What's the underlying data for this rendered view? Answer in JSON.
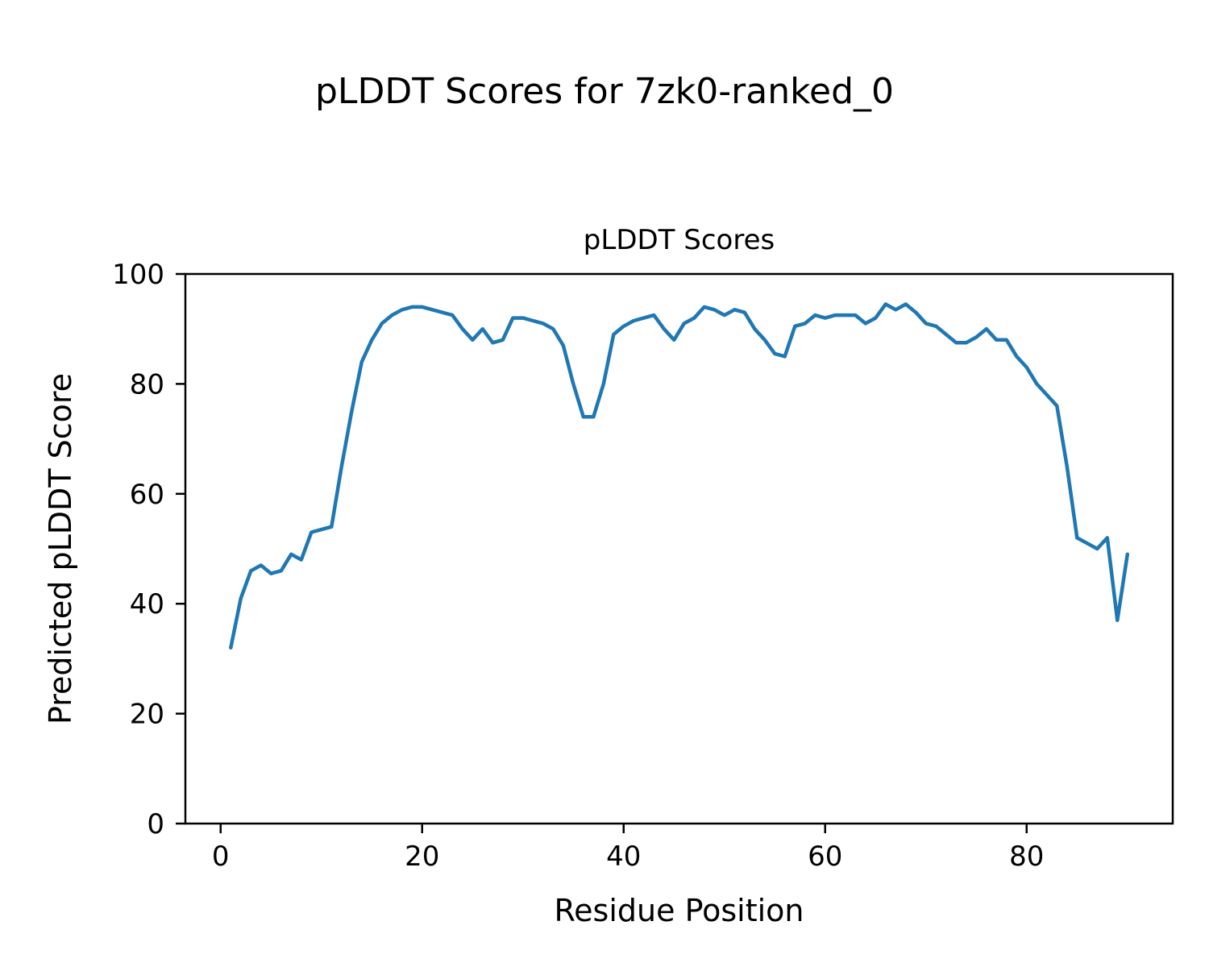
{
  "figure": {
    "title": "pLDDT Scores for 7zk0-ranked_0"
  },
  "chart_data": {
    "type": "line",
    "title": "pLDDT Scores",
    "xlabel": "Residue Position",
    "ylabel": "Predicted pLDDT Score",
    "xlim": [
      -3.5,
      94.5
    ],
    "ylim": [
      0,
      100
    ],
    "xticks": [
      0,
      20,
      40,
      60,
      80
    ],
    "yticks": [
      0,
      20,
      40,
      60,
      80,
      100
    ],
    "grid": false,
    "legend": "none",
    "line_color": "#1f77b4",
    "line_width": 4.5,
    "x_start": 1,
    "series": [
      {
        "name": "pLDDT",
        "values": [
          32,
          41,
          46,
          47,
          45.5,
          46,
          49,
          48,
          53,
          53.5,
          54,
          65,
          75,
          84,
          88,
          91,
          92.5,
          93.5,
          94,
          94,
          93.5,
          93,
          92.5,
          90,
          88,
          90,
          87.5,
          88,
          92,
          92,
          91.5,
          91,
          90,
          87,
          80,
          74,
          74,
          80,
          89,
          90.5,
          91.5,
          92,
          92.5,
          90,
          88,
          91,
          92,
          94,
          93.5,
          92.5,
          93.5,
          93,
          90,
          88,
          85.5,
          85,
          90.5,
          91,
          92.5,
          92,
          92.5,
          92.5,
          92.5,
          91,
          92,
          94.5,
          93.5,
          94.5,
          93,
          91,
          90.5,
          89,
          87.5,
          87.5,
          88.5,
          90,
          88,
          88,
          85,
          83,
          80,
          78,
          76,
          65,
          52,
          51,
          50,
          52,
          37,
          49
        ]
      }
    ]
  }
}
